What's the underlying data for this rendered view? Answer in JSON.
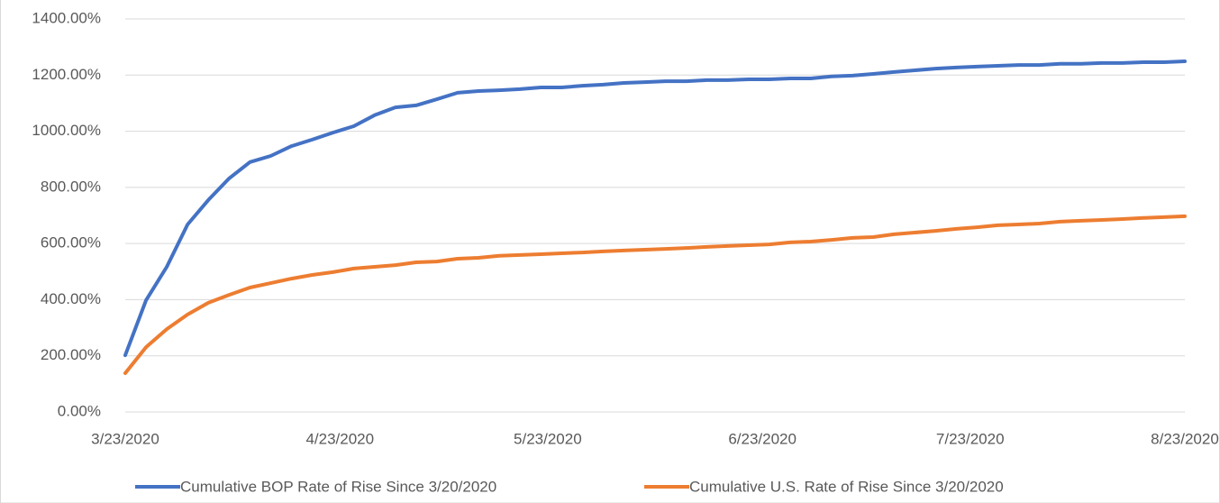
{
  "chart_data": {
    "type": "line",
    "x": [
      "3/23/2020",
      "3/26/2020",
      "3/29/2020",
      "4/1/2020",
      "4/4/2020",
      "4/7/2020",
      "4/10/2020",
      "4/13/2020",
      "4/16/2020",
      "4/19/2020",
      "4/22/2020",
      "4/25/2020",
      "4/28/2020",
      "5/1/2020",
      "5/4/2020",
      "5/7/2020",
      "5/10/2020",
      "5/13/2020",
      "5/16/2020",
      "5/19/2020",
      "5/22/2020",
      "5/25/2020",
      "5/28/2020",
      "5/31/2020",
      "6/3/2020",
      "6/6/2020",
      "6/9/2020",
      "6/12/2020",
      "6/15/2020",
      "6/18/2020",
      "6/21/2020",
      "6/24/2020",
      "6/27/2020",
      "6/30/2020",
      "7/3/2020",
      "7/6/2020",
      "7/9/2020",
      "7/12/2020",
      "7/15/2020",
      "7/18/2020",
      "7/21/2020",
      "7/24/2020",
      "7/27/2020",
      "7/30/2020",
      "8/2/2020",
      "8/5/2020",
      "8/8/2020",
      "8/11/2020",
      "8/14/2020",
      "8/17/2020",
      "8/20/2020",
      "8/23/2020"
    ],
    "series": [
      {
        "name": "Cumulative BOP Rate of Rise Since 3/20/2020",
        "color": "#4472c4",
        "values": [
          202,
          398,
          517,
          668,
          755,
          832,
          890,
          912,
          947,
          970,
          995,
          1018,
          1057,
          1085,
          1092,
          1114,
          1137,
          1143,
          1146,
          1150,
          1156,
          1156,
          1162,
          1166,
          1172,
          1175,
          1178,
          1178,
          1182,
          1182,
          1185,
          1185,
          1188,
          1188,
          1195,
          1198,
          1204,
          1211,
          1217,
          1223,
          1227,
          1230,
          1233,
          1236,
          1236,
          1240,
          1240,
          1243,
          1243,
          1246,
          1246,
          1249
        ]
      },
      {
        "name": "Cumulative U.S. Rate of Rise Since 3/20/2020",
        "color": "#ed7d31",
        "values": [
          138,
          231,
          295,
          347,
          389,
          417,
          443,
          459,
          475,
          488,
          498,
          511,
          517,
          523,
          533,
          536,
          546,
          549,
          556,
          559,
          562,
          565,
          568,
          572,
          575,
          578,
          581,
          584,
          588,
          591,
          594,
          597,
          604,
          607,
          613,
          620,
          623,
          633,
          639,
          645,
          652,
          658,
          665,
          668,
          671,
          678,
          681,
          684,
          687,
          691,
          694,
          697
        ]
      }
    ],
    "xlim": [
      "3/23/2020",
      "8/23/2020"
    ],
    "xticks": [
      "3/23/2020",
      "4/23/2020",
      "5/23/2020",
      "6/23/2020",
      "7/23/2020",
      "8/23/2020"
    ],
    "ylim": [
      0,
      1400
    ],
    "yticks": [
      {
        "value": 0,
        "label": "0.00%"
      },
      {
        "value": 200,
        "label": "200.00%"
      },
      {
        "value": 400,
        "label": "400.00%"
      },
      {
        "value": 600,
        "label": "600.00%"
      },
      {
        "value": 800,
        "label": "800.00%"
      },
      {
        "value": 1000,
        "label": "1000.00%"
      },
      {
        "value": 1200,
        "label": "1200.00%"
      },
      {
        "value": 1400,
        "label": "1400.00%"
      }
    ],
    "grid": true
  }
}
